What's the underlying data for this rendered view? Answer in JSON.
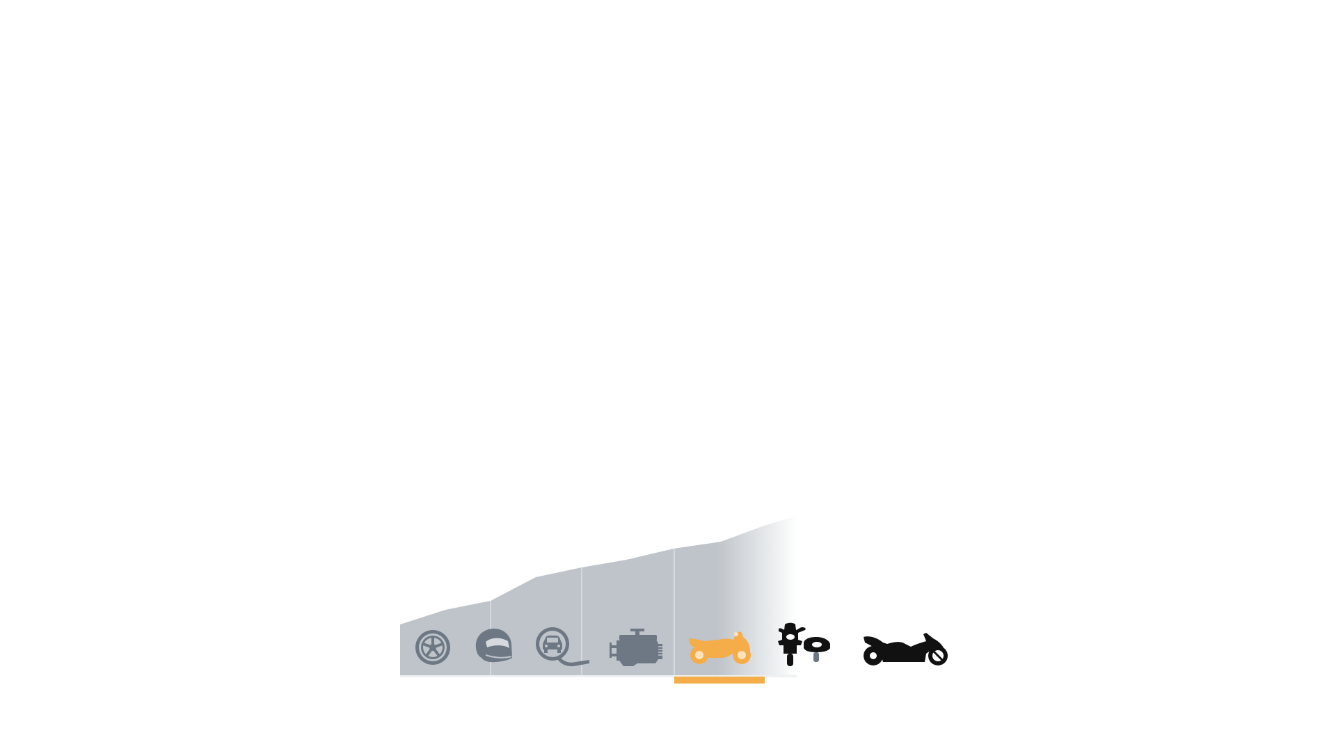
{
  "colors": {
    "area_fill": "#bfc4ca",
    "divider": "#e4e7ea",
    "icon_inactive": "#6d7884",
    "icon_active": "#f4ad49",
    "icon_upcoming": "#111111",
    "progress_track": "#eef0f2",
    "progress_active": "#f4ad49"
  },
  "progress": {
    "current_step": 5,
    "total_steps": 7
  },
  "steps": [
    {
      "id": "wheel",
      "icon": "wheel-icon",
      "state": "completed"
    },
    {
      "id": "helmet",
      "icon": "helmet-icon",
      "state": "completed"
    },
    {
      "id": "driving-test",
      "icon": "car-test-icon",
      "state": "completed"
    },
    {
      "id": "engine",
      "icon": "engine-icon",
      "state": "completed"
    },
    {
      "id": "sport-bike",
      "icon": "sport-motorcycle-icon",
      "state": "active"
    },
    {
      "id": "sidecar",
      "icon": "sidecar-motorcycle-icon",
      "state": "upcoming"
    },
    {
      "id": "cruiser",
      "icon": "cruiser-motorcycle-icon",
      "state": "upcoming"
    }
  ]
}
